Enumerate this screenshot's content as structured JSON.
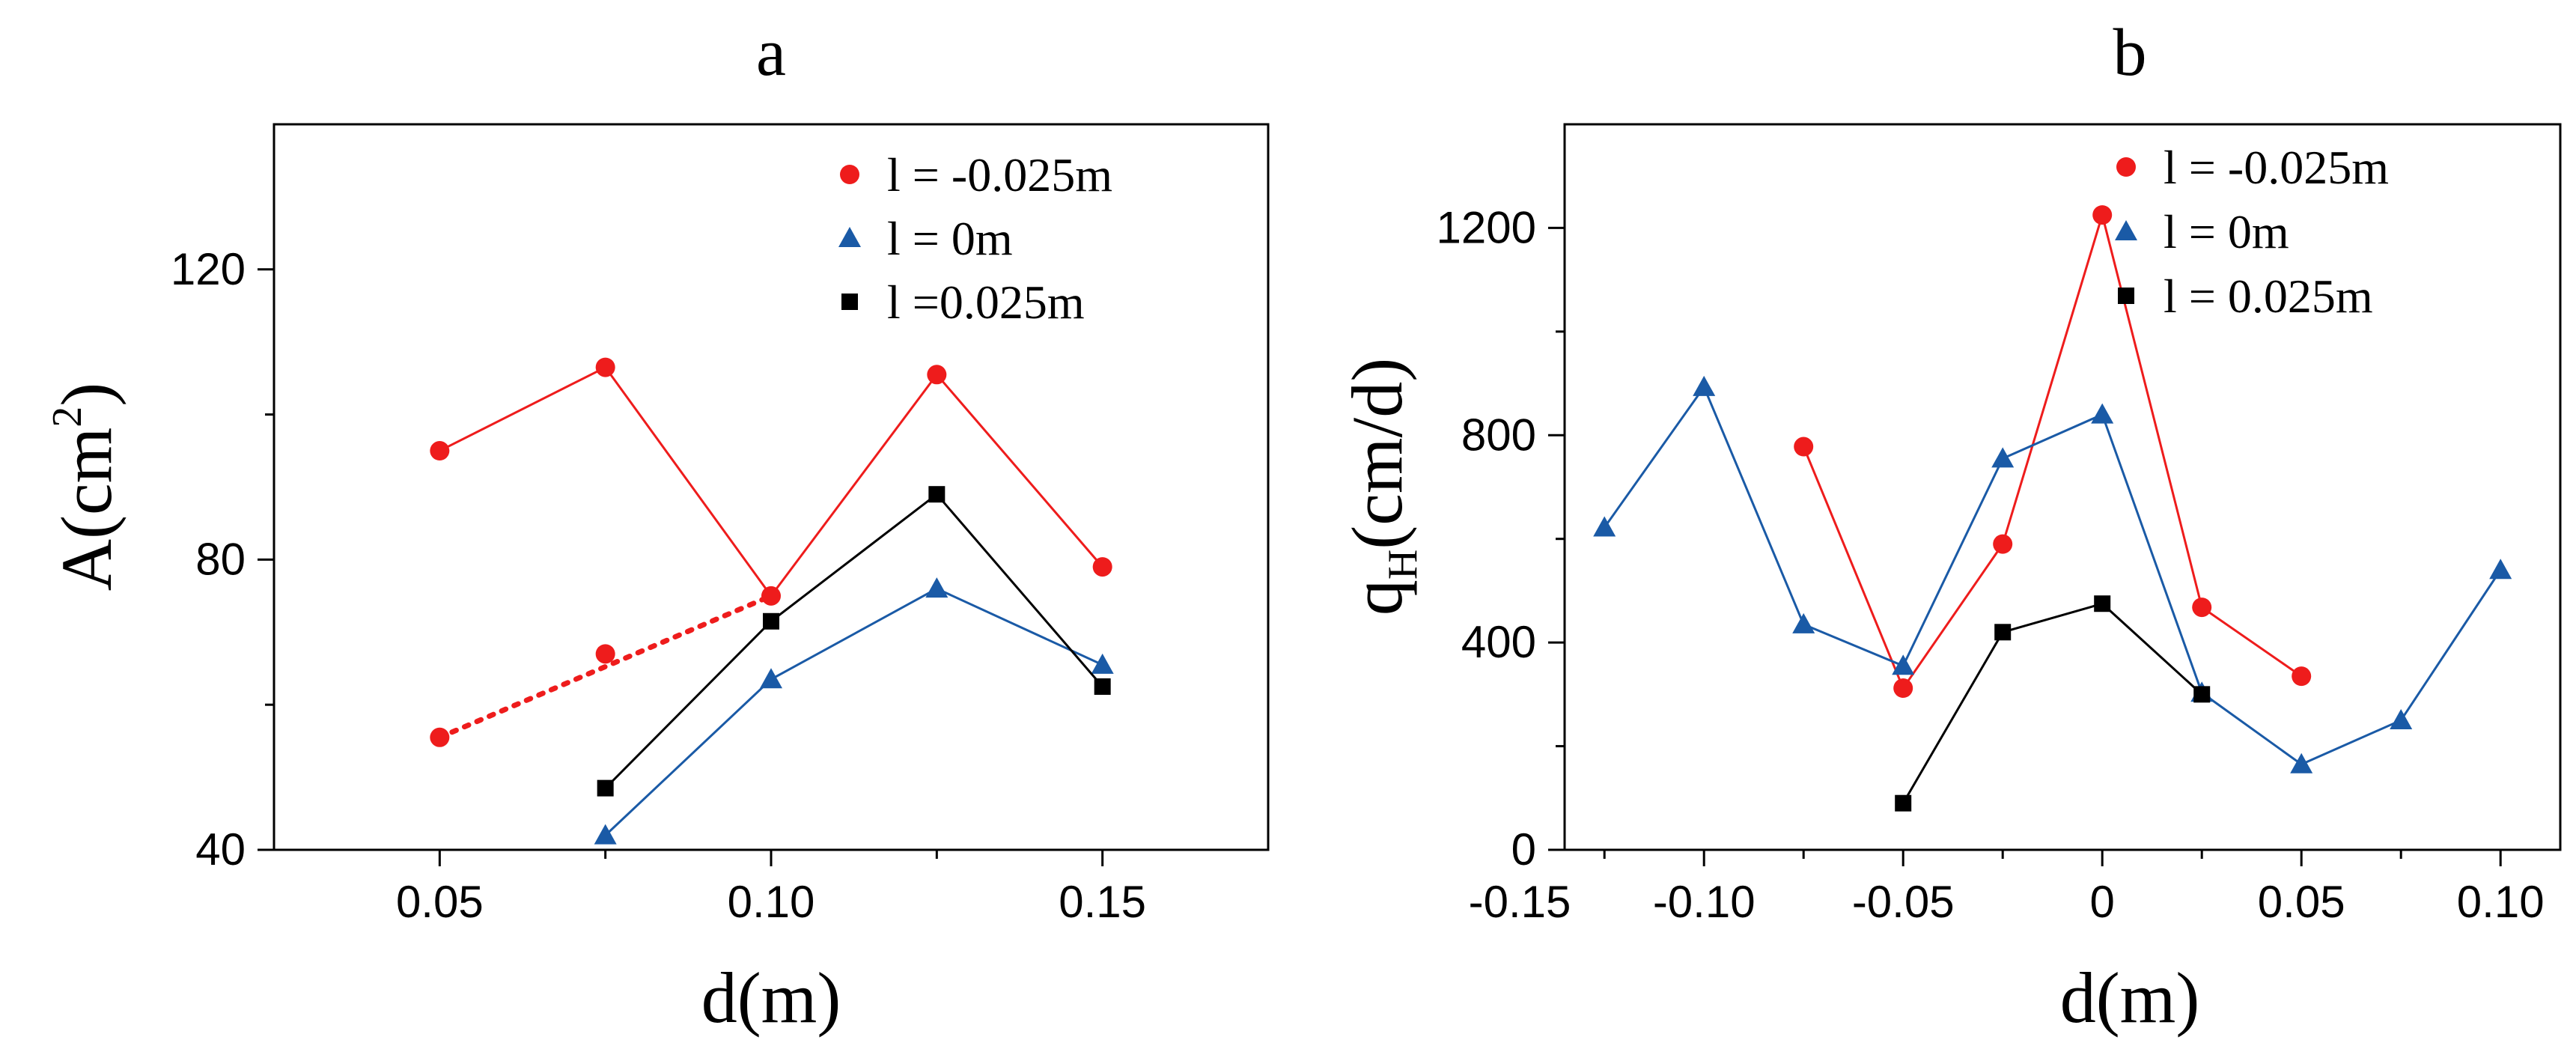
{
  "chart_data": [
    {
      "type": "line",
      "title": "a",
      "xlabel": "d(m)",
      "ylabel_main": "A(cm",
      "ylabel_sup": "2",
      "ylabel_close": ")",
      "xlim": [
        0.025,
        0.175
      ],
      "ylim": [
        40,
        140
      ],
      "xticks": [
        0.05,
        0.075,
        0.1,
        0.125,
        0.15
      ],
      "xtick_labels": [
        "0.05",
        "",
        "0.10",
        "",
        "0.15"
      ],
      "yticks": [
        40,
        60,
        80,
        100,
        120
      ],
      "ytick_labels": [
        "40",
        "",
        "80",
        "",
        "120"
      ],
      "legend_position": "top-right",
      "series": [
        {
          "name": "l = -0.025m",
          "marker": "circle",
          "color": "#ee1c1c",
          "x": [
            0.05,
            0.075,
            0.1,
            0.125,
            0.15
          ],
          "y": [
            95,
            106.5,
            75,
            105.5,
            79
          ],
          "extra_points": {
            "x": [
              0.05,
              0.075
            ],
            "y": [
              55.5,
              67
            ]
          },
          "dotted_segment": {
            "x": [
              0.05,
              0.1
            ],
            "y": [
              55.5,
              75
            ]
          }
        },
        {
          "name": "l = 0m",
          "marker": "triangle",
          "color": "#1a5aa6",
          "x": [
            0.075,
            0.1,
            0.125,
            0.15
          ],
          "y": [
            42,
            63.5,
            76,
            65.5
          ]
        },
        {
          "name": "l =0.025m",
          "marker": "square",
          "color": "#000000",
          "x": [
            0.075,
            0.1,
            0.125,
            0.15
          ],
          "y": [
            48.5,
            71.5,
            89,
            62.5
          ]
        }
      ]
    },
    {
      "type": "line",
      "title": "b",
      "xlabel": "d(m)",
      "ylabel_main": "q",
      "ylabel_sub": "H",
      "ylabel_rest": "(cm/d)",
      "xlim": [
        -0.135,
        0.115
      ],
      "ylim": [
        0,
        1400
      ],
      "xticks": [
        -0.15,
        -0.125,
        -0.1,
        -0.075,
        -0.05,
        -0.025,
        0,
        0.025,
        0.05,
        0.075,
        0.1
      ],
      "xtick_labels": [
        "-0.15",
        "",
        "-0.10",
        "",
        "-0.05",
        "",
        "0",
        "",
        "0.05",
        "",
        "0.10"
      ],
      "yticks": [
        0,
        200,
        400,
        600,
        800,
        1000,
        1200
      ],
      "ytick_labels": [
        "0",
        "",
        "400",
        "",
        "800",
        "",
        "1200"
      ],
      "legend_position": "top-right",
      "series": [
        {
          "name": "l = -0.025m",
          "marker": "circle",
          "color": "#ee1c1c",
          "x": [
            -0.075,
            -0.05,
            -0.025,
            0,
            0.025,
            0.05
          ],
          "y": [
            778,
            312,
            590,
            1225,
            468,
            335
          ]
        },
        {
          "name": "l = 0m",
          "marker": "triangle",
          "color": "#1a5aa6",
          "x": [
            -0.125,
            -0.1,
            -0.075,
            -0.05,
            -0.025,
            0,
            0.025,
            0.05,
            0.075,
            0.1
          ],
          "y": [
            622,
            893,
            435,
            355,
            755,
            840,
            303,
            165,
            250,
            540
          ]
        },
        {
          "name": "l = 0.025m",
          "marker": "square",
          "color": "#000000",
          "x": [
            -0.05,
            -0.025,
            0,
            0.025
          ],
          "y": [
            90,
            420,
            475,
            300
          ]
        }
      ]
    }
  ]
}
